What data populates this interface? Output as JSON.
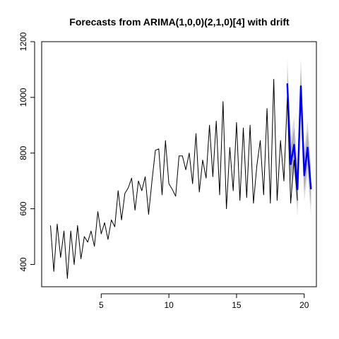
{
  "chart_data": {
    "type": "line",
    "title": "Forecasts from ARIMA(1,0,0)(2,1,0)[4] with drift",
    "xlabel": "",
    "ylabel": "",
    "xlim": [
      0.6,
      20.9
    ],
    "ylim": [
      320,
      1200
    ],
    "x_ticks": [
      5,
      10,
      15,
      20
    ],
    "x_tick_labels": [
      "5",
      "10",
      "15",
      "20"
    ],
    "y_ticks": [
      400,
      600,
      800,
      1000,
      1200
    ],
    "y_tick_labels": [
      "400",
      "600",
      "800",
      "1000",
      "1200"
    ],
    "grid": false,
    "legend": "none",
    "series": [
      {
        "role": "observed",
        "color": "#000000",
        "x_start": 1.25,
        "x_step": 0.25,
        "values": [
          540,
          375,
          545,
          425,
          520,
          350,
          520,
          400,
          540,
          420,
          500,
          480,
          520,
          465,
          590,
          510,
          550,
          490,
          560,
          535,
          665,
          560,
          655,
          675,
          710,
          595,
          700,
          665,
          715,
          580,
          700,
          810,
          815,
          650,
          845,
          690,
          670,
          645,
          790,
          790,
          740,
          800,
          690,
          870,
          660,
          775,
          710,
          900,
          715,
          915,
          650,
          985,
          600,
          820,
          665,
          910,
          630,
          890,
          640,
          900,
          620,
          755,
          845,
          650,
          960,
          620,
          1065,
          630,
          845,
          700,
          1000,
          620,
          775,
          630
        ]
      },
      {
        "role": "forecast",
        "color": "#0000ee",
        "x_start": 18.75,
        "x_step": 0.25,
        "values": [
          1050,
          760,
          830,
          670,
          1040,
          720,
          820,
          670
        ]
      }
    ],
    "prediction_band_80": {
      "color": "#aeaeb8",
      "lower": [
        990,
        700,
        770,
        610,
        975,
        660,
        760,
        610
      ],
      "upper": [
        1110,
        820,
        890,
        730,
        1105,
        780,
        880,
        730
      ]
    },
    "prediction_band_95": {
      "color": "#dcdcdf",
      "lower": [
        955,
        665,
        730,
        570,
        940,
        625,
        725,
        575
      ],
      "upper": [
        1145,
        855,
        930,
        765,
        1140,
        815,
        915,
        765
      ]
    }
  }
}
